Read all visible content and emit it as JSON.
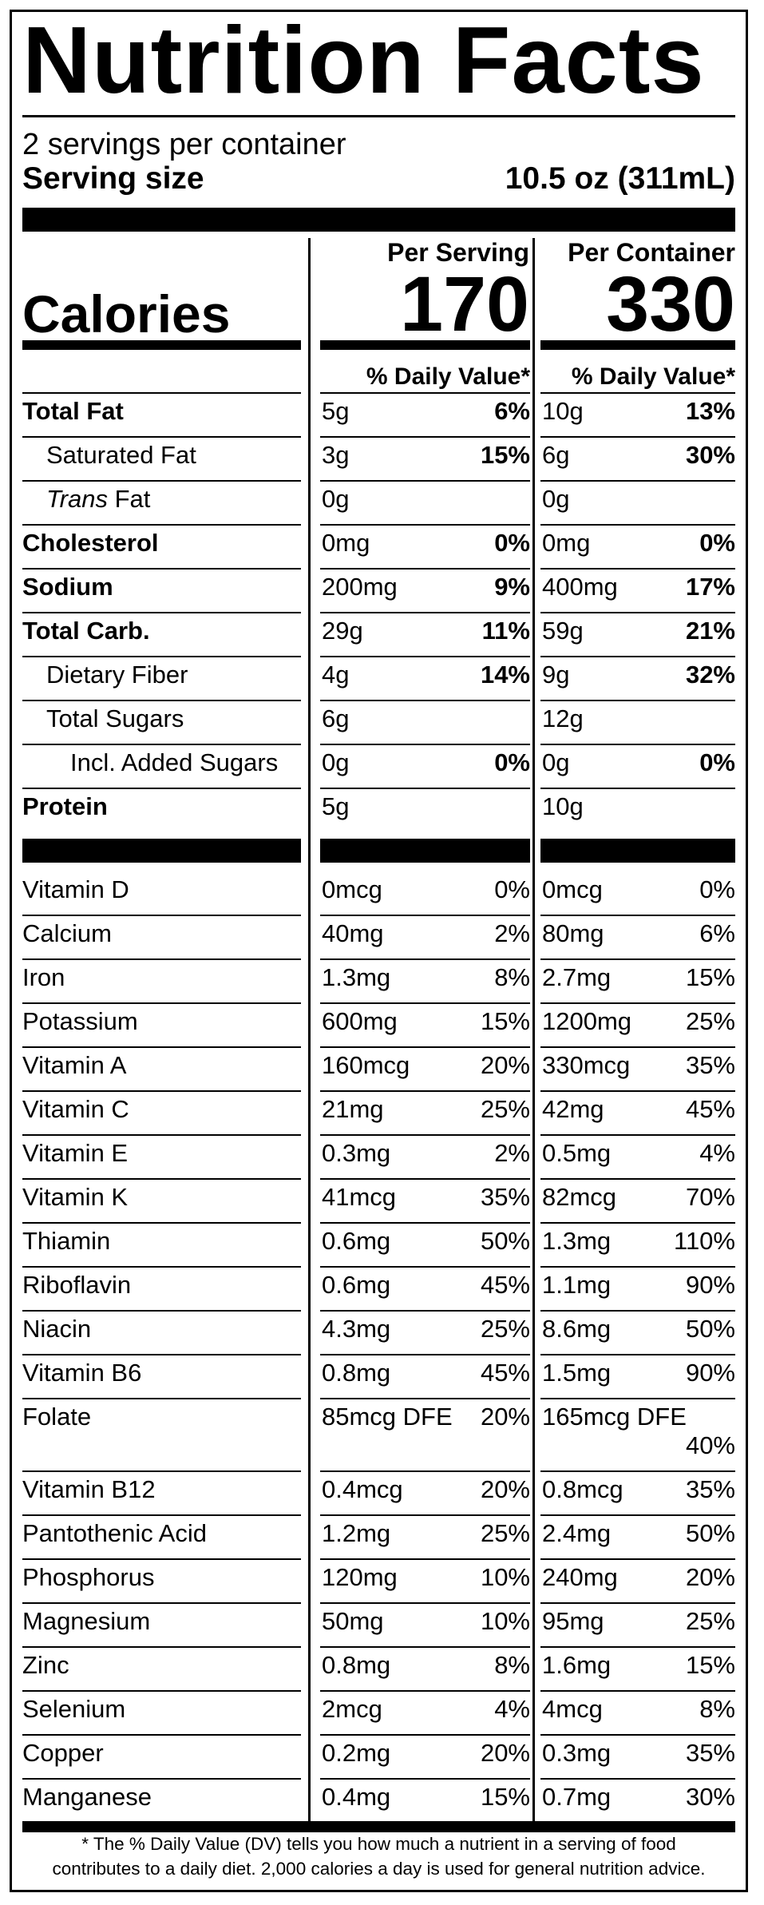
{
  "title": "Nutrition Facts",
  "servings_per_container": "2 servings per container",
  "serving_size_label": "Serving size",
  "serving_size_value": "10.5 oz (311mL)",
  "per_serving_label": "Per Serving",
  "per_container_label": "Per Container",
  "calories_label": "Calories",
  "calories_per_serving": "170",
  "calories_per_container": "330",
  "daily_value_header": "% Daily Value*",
  "nutrients": [
    {
      "name": "Total Fat",
      "bold": true,
      "indent": 0,
      "serv_amt": "5g",
      "serv_dv": "6%",
      "cont_amt": "10g",
      "cont_dv": "13%"
    },
    {
      "name": "Saturated Fat",
      "bold": false,
      "indent": 1,
      "serv_amt": "3g",
      "serv_dv": "15%",
      "cont_amt": "6g",
      "cont_dv": "30%"
    },
    {
      "name": "Trans",
      "name_suffix": " Fat",
      "italic_prefix": true,
      "bold": false,
      "indent": 1,
      "serv_amt": "0g",
      "serv_dv": "",
      "cont_amt": "0g",
      "cont_dv": ""
    },
    {
      "name": "Cholesterol",
      "bold": true,
      "indent": 0,
      "serv_amt": "0mg",
      "serv_dv": "0%",
      "cont_amt": "0mg",
      "cont_dv": "0%"
    },
    {
      "name": "Sodium",
      "bold": true,
      "indent": 0,
      "serv_amt": "200mg",
      "serv_dv": "9%",
      "cont_amt": "400mg",
      "cont_dv": "17%"
    },
    {
      "name": "Total Carb.",
      "bold": true,
      "indent": 0,
      "serv_amt": "29g",
      "serv_dv": "11%",
      "cont_amt": "59g",
      "cont_dv": "21%"
    },
    {
      "name": "Dietary Fiber",
      "bold": false,
      "indent": 1,
      "serv_amt": "4g",
      "serv_dv": "14%",
      "cont_amt": "9g",
      "cont_dv": "32%"
    },
    {
      "name": "Total Sugars",
      "bold": false,
      "indent": 1,
      "serv_amt": "6g",
      "serv_dv": "",
      "cont_amt": "12g",
      "cont_dv": ""
    },
    {
      "name": "Incl. Added Sugars",
      "bold": false,
      "indent": 2,
      "serv_amt": "0g",
      "serv_dv": "0%",
      "cont_amt": "0g",
      "cont_dv": "0%"
    },
    {
      "name": "Protein",
      "bold": true,
      "indent": 0,
      "serv_amt": "5g",
      "serv_dv": "",
      "cont_amt": "10g",
      "cont_dv": ""
    }
  ],
  "vitamins": [
    {
      "name": "Vitamin D",
      "serv_amt": "0mcg",
      "serv_dv": "0%",
      "cont_amt": "0mcg",
      "cont_dv": "0%"
    },
    {
      "name": "Calcium",
      "serv_amt": "40mg",
      "serv_dv": "2%",
      "cont_amt": "80mg",
      "cont_dv": "6%"
    },
    {
      "name": "Iron",
      "serv_amt": "1.3mg",
      "serv_dv": "8%",
      "cont_amt": "2.7mg",
      "cont_dv": "15%"
    },
    {
      "name": "Potassium",
      "serv_amt": "600mg",
      "serv_dv": "15%",
      "cont_amt": "1200mg",
      "cont_dv": "25%"
    },
    {
      "name": "Vitamin A",
      "serv_amt": "160mcg",
      "serv_dv": "20%",
      "cont_amt": "330mcg",
      "cont_dv": "35%"
    },
    {
      "name": "Vitamin C",
      "serv_amt": "21mg",
      "serv_dv": "25%",
      "cont_amt": "42mg",
      "cont_dv": "45%"
    },
    {
      "name": "Vitamin E",
      "serv_amt": "0.3mg",
      "serv_dv": "2%",
      "cont_amt": "0.5mg",
      "cont_dv": "4%"
    },
    {
      "name": "Vitamin K",
      "serv_amt": "41mcg",
      "serv_dv": "35%",
      "cont_amt": "82mcg",
      "cont_dv": "70%"
    },
    {
      "name": "Thiamin",
      "serv_amt": "0.6mg",
      "serv_dv": "50%",
      "cont_amt": "1.3mg",
      "cont_dv": "110%"
    },
    {
      "name": "Riboflavin",
      "serv_amt": "0.6mg",
      "serv_dv": "45%",
      "cont_amt": "1.1mg",
      "cont_dv": "90%"
    },
    {
      "name": "Niacin",
      "serv_amt": "4.3mg",
      "serv_dv": "25%",
      "cont_amt": "8.6mg",
      "cont_dv": "50%"
    },
    {
      "name": "Vitamin B6",
      "serv_amt": "0.8mg",
      "serv_dv": "45%",
      "cont_amt": "1.5mg",
      "cont_dv": "90%"
    },
    {
      "name": "Folate",
      "serv_amt": "85mcg DFE",
      "serv_dv": "20%",
      "cont_amt": "165mcg DFE",
      "cont_dv": "40%"
    },
    {
      "name": "Vitamin B12",
      "serv_amt": "0.4mcg",
      "serv_dv": "20%",
      "cont_amt": "0.8mcg",
      "cont_dv": "35%"
    },
    {
      "name": "Pantothenic Acid",
      "serv_amt": "1.2mg",
      "serv_dv": "25%",
      "cont_amt": "2.4mg",
      "cont_dv": "50%"
    },
    {
      "name": "Phosphorus",
      "serv_amt": "120mg",
      "serv_dv": "10%",
      "cont_amt": "240mg",
      "cont_dv": "20%"
    },
    {
      "name": "Magnesium",
      "serv_amt": "50mg",
      "serv_dv": "10%",
      "cont_amt": "95mg",
      "cont_dv": "25%"
    },
    {
      "name": "Zinc",
      "serv_amt": "0.8mg",
      "serv_dv": "8%",
      "cont_amt": "1.6mg",
      "cont_dv": "15%"
    },
    {
      "name": "Selenium",
      "serv_amt": "2mcg",
      "serv_dv": "4%",
      "cont_amt": "4mcg",
      "cont_dv": "8%"
    },
    {
      "name": "Copper",
      "serv_amt": "0.2mg",
      "serv_dv": "20%",
      "cont_amt": "0.3mg",
      "cont_dv": "35%"
    },
    {
      "name": "Manganese",
      "serv_amt": "0.4mg",
      "serv_dv": "15%",
      "cont_amt": "0.7mg",
      "cont_dv": "30%"
    }
  ],
  "footnote_line1": "* The % Daily Value (DV) tells you how much a nutrient in a serving of food",
  "footnote_line2": "contributes to a daily diet. 2,000 calories a day is used for general nutrition advice."
}
